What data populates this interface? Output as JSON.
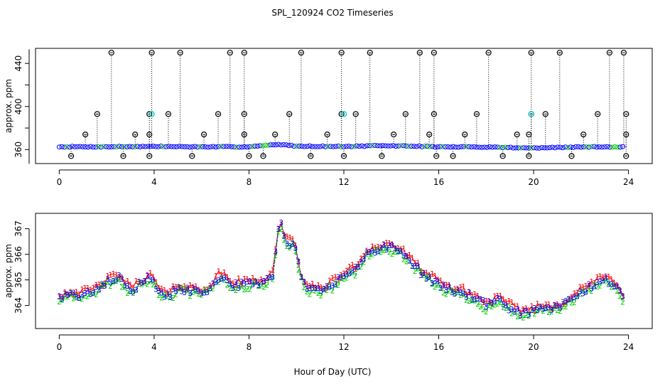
{
  "title": "SPL_120924  CO2 Timeseries",
  "xlabel": "Hour of Day (UTC)",
  "colors": {
    "s1": "#ff0000",
    "s2": "#00cc00",
    "s3": "#0000ff",
    "cyan": "#00cccc",
    "black": "#000000"
  },
  "chart_data": [
    {
      "type": "scatter",
      "title": "SPL_120924  CO2 Timeseries",
      "ylabel": "approx. ppm",
      "xlim": [
        -1,
        25
      ],
      "ylim": [
        347,
        454
      ],
      "xticks": [
        0,
        4,
        8,
        12,
        16,
        20,
        24
      ],
      "yticks": [
        360,
        400,
        440
      ],
      "baseline": [
        [
          0,
          362.6
        ],
        [
          2,
          362.6
        ],
        [
          4,
          362.9
        ],
        [
          6,
          362.5
        ],
        [
          8,
          362.6
        ],
        [
          9.3,
          364.8
        ],
        [
          10,
          363.2
        ],
        [
          12,
          362.8
        ],
        [
          13.5,
          363.6
        ],
        [
          15,
          363.2
        ],
        [
          16,
          362.5
        ],
        [
          18,
          362.4
        ],
        [
          20,
          361.4
        ],
        [
          22,
          362.4
        ],
        [
          23.8,
          362.6
        ]
      ],
      "spikes_high": [
        2.2,
        3.9,
        5.1,
        7.2,
        7.8,
        10.2,
        11.9,
        13.1,
        15.2,
        15.8,
        18.1,
        19.9,
        21.1,
        23.2,
        23.8
      ],
      "spikes_mid": [
        1.6,
        3.8,
        4.6,
        6.7,
        7.8,
        9.7,
        11.9,
        12.5,
        14.6,
        15.8,
        17.6,
        19.9,
        20.5,
        22.7,
        23.9
      ],
      "spikes_low": [
        1.1,
        3.2,
        3.8,
        6.1,
        7.8,
        9.1,
        11.3,
        14.1,
        15.6,
        17.1,
        19.3,
        19.8,
        22.1,
        23.9
      ],
      "spikes_min": [
        0.5,
        2.7,
        3.8,
        5.6,
        8.0,
        8.6,
        10.6,
        12.0,
        13.6,
        15.9,
        16.6,
        18.7,
        19.8,
        21.6,
        23.9
      ],
      "spike_levels": {
        "high": 450,
        "mid": 393,
        "low": 374,
        "min": 354
      },
      "cyan_points": [
        [
          3.9,
          393
        ],
        [
          12.0,
          393
        ],
        [
          19.9,
          393
        ]
      ]
    },
    {
      "type": "scatter",
      "ylabel": "approx. ppm",
      "xlim": [
        -1,
        25
      ],
      "ylim": [
        363.1,
        367.6
      ],
      "xticks": [
        0,
        4,
        8,
        12,
        16,
        20,
        24
      ],
      "yticks": [
        364,
        365,
        366,
        367
      ],
      "series": [
        {
          "name": "1",
          "color": "#ff0000"
        },
        {
          "name": "2",
          "color": "#00cc00"
        },
        {
          "name": "3",
          "color": "#0000ff"
        }
      ],
      "anchors": [
        [
          0,
          364.3
        ],
        [
          0.5,
          364.45
        ],
        [
          1,
          364.4
        ],
        [
          1.5,
          364.55
        ],
        [
          2,
          364.9
        ],
        [
          2.5,
          365.1
        ],
        [
          3,
          364.6
        ],
        [
          3.5,
          364.9
        ],
        [
          3.8,
          365.1
        ],
        [
          4.2,
          364.6
        ],
        [
          4.6,
          364.3
        ],
        [
          5,
          364.7
        ],
        [
          5.5,
          364.6
        ],
        [
          6,
          364.5
        ],
        [
          6.5,
          364.8
        ],
        [
          6.8,
          365.2
        ],
        [
          7.3,
          364.8
        ],
        [
          7.8,
          364.8
        ],
        [
          8.2,
          364.9
        ],
        [
          8.6,
          364.9
        ],
        [
          9,
          365.2
        ],
        [
          9.3,
          367.4
        ],
        [
          9.5,
          366.5
        ],
        [
          9.9,
          366.4
        ],
        [
          10.2,
          365.1
        ],
        [
          10.5,
          364.6
        ],
        [
          11,
          364.6
        ],
        [
          11.5,
          364.8
        ],
        [
          12,
          365.2
        ],
        [
          12.5,
          365.4
        ],
        [
          13,
          366.1
        ],
        [
          13.5,
          366.2
        ],
        [
          13.9,
          366.3
        ],
        [
          14.4,
          366.1
        ],
        [
          14.9,
          365.6
        ],
        [
          15.4,
          365.2
        ],
        [
          16,
          364.8
        ],
        [
          16.5,
          364.6
        ],
        [
          17,
          364.5
        ],
        [
          17.5,
          364.3
        ],
        [
          18,
          364
        ],
        [
          18.5,
          364.2
        ],
        [
          19,
          363.9
        ],
        [
          19.5,
          363.7
        ],
        [
          20,
          363.8
        ],
        [
          20.5,
          363.9
        ],
        [
          21,
          363.9
        ],
        [
          21.5,
          364.2
        ],
        [
          22,
          364.5
        ],
        [
          22.5,
          364.8
        ],
        [
          23,
          365
        ],
        [
          23.5,
          364.8
        ],
        [
          23.8,
          364.3
        ]
      ]
    }
  ]
}
